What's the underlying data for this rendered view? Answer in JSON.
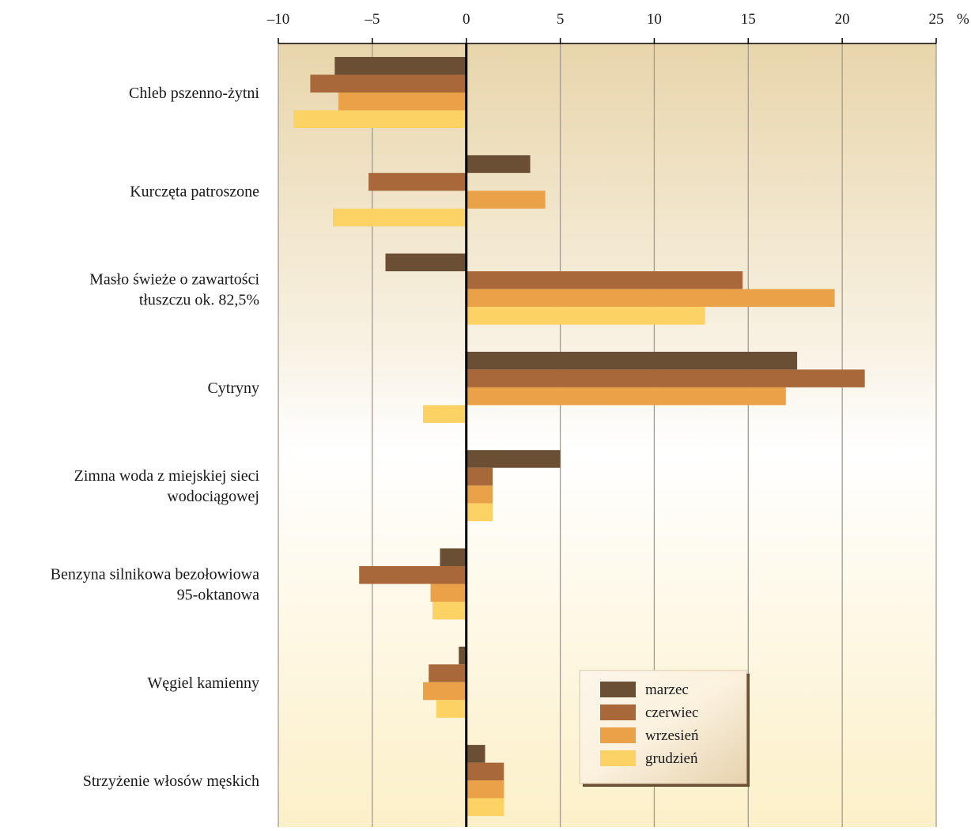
{
  "chart_data": {
    "type": "bar",
    "orientation": "horizontal",
    "unit": "%",
    "xlim": [
      -10,
      25
    ],
    "xticks": [
      -10,
      -5,
      0,
      5,
      10,
      15,
      20,
      25
    ],
    "xtick_labels": [
      "–10",
      "–5",
      "0",
      "5",
      "10",
      "15",
      "20",
      "25"
    ],
    "grid": true,
    "legend_position": "bottom-right",
    "categories": [
      [
        "Chleb pszenno-żytni"
      ],
      [
        "Kurczęta patroszone"
      ],
      [
        "Masło świeże o zawartości",
        "tłuszczu ok. 82,5%"
      ],
      [
        "Cytryny"
      ],
      [
        "Zimna woda z miejskiej sieci",
        "wodociągowej"
      ],
      [
        "Benzyna silnikowa bezołowiowa",
        "95-oktanowa"
      ],
      [
        "Węgiel kamienny"
      ],
      [
        "Strzyżenie włosów męskich"
      ]
    ],
    "series": [
      {
        "name": "marzec",
        "color": "#6b4f35",
        "values": [
          -7.0,
          3.4,
          -4.3,
          17.6,
          5.0,
          -1.4,
          -0.4,
          1.0
        ]
      },
      {
        "name": "czerwiec",
        "color": "#a8683a",
        "values": [
          -8.3,
          -5.2,
          14.7,
          21.2,
          1.4,
          -5.7,
          -2.0,
          2.0
        ]
      },
      {
        "name": "wrzesień",
        "color": "#eaa148",
        "values": [
          -6.8,
          4.2,
          19.6,
          17.0,
          1.4,
          -1.9,
          -2.3,
          2.0
        ]
      },
      {
        "name": "grudzień",
        "color": "#fbd263",
        "values": [
          -9.2,
          -7.1,
          12.7,
          -2.3,
          1.4,
          -1.8,
          -1.6,
          2.0
        ]
      }
    ]
  }
}
